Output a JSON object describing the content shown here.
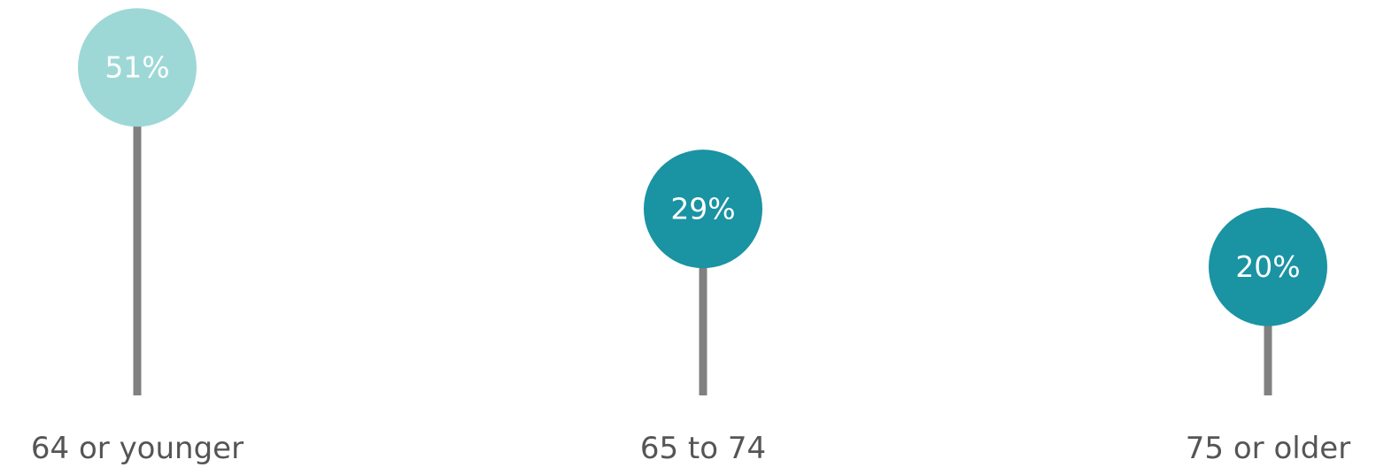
{
  "chart_data": {
    "type": "lollipop",
    "categories": [
      "64 or younger",
      "65 to 74",
      "75 or older"
    ],
    "values": [
      51,
      29,
      20
    ],
    "value_labels": [
      "51%",
      "29%",
      "20%"
    ],
    "colors": [
      "#9dd8d7",
      "#1a93a3",
      "#1a93a3"
    ],
    "stem_color": "#808080"
  }
}
